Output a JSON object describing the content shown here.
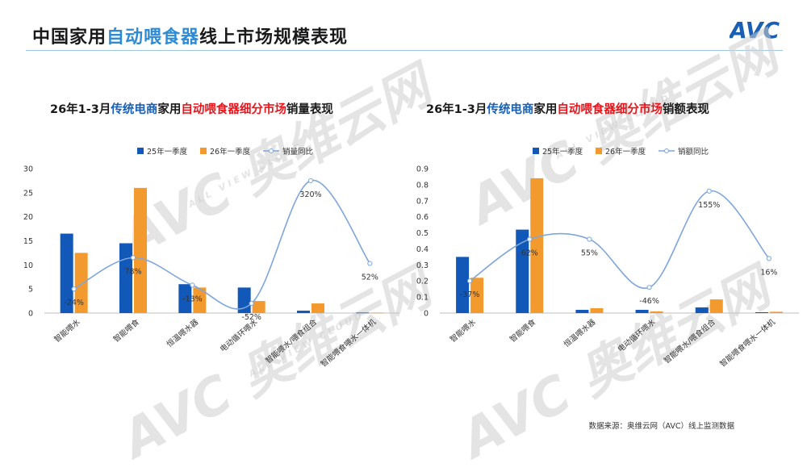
{
  "header": {
    "title_pre": "中国家用",
    "title_hl": "自动喂食器",
    "title_post": "线上市场规模表现"
  },
  "logo": {
    "text": "AVC"
  },
  "watermark": {
    "big": "AVC 奥维云网",
    "small": "ALL VIEW CLOUD"
  },
  "colors": {
    "q25": "#1158b8",
    "q26": "#f29a2e",
    "yoy": "#7ea6dc",
    "accent": "#2e8bd6"
  },
  "legend": {
    "q25": "25年一季度",
    "q26": "26年一季度",
    "yoy_volume": "销量同比",
    "yoy_value": "销额同比"
  },
  "charts": [
    {
      "title_parts": [
        "26年1-3月",
        "传统电商",
        "家用",
        "自动喂食器细分市场",
        "销量表现"
      ]
    },
    {
      "title_parts": [
        "26年1-3月",
        "传统电商",
        "家用",
        "自动喂食器细分市场",
        "销额表现"
      ]
    }
  ],
  "chart_data": [
    {
      "type": "bar",
      "title": "26年1-3月传统电商家用自动喂食器细分市场销量表现",
      "categories": [
        "智能喂水",
        "智能喂食",
        "恒温喂水器",
        "电动循环喂水",
        "智能喂水/喂食组合",
        "智能喂食喂水一体机"
      ],
      "series": [
        {
          "name": "25年一季度",
          "values": [
            16.5,
            14.5,
            6.0,
            5.3,
            0.5,
            0.1
          ]
        },
        {
          "name": "26年一季度",
          "values": [
            12.5,
            26.0,
            5.3,
            2.5,
            2.0,
            0.1
          ]
        }
      ],
      "yoy": {
        "name": "销量同比",
        "values": [
          5.0,
          11.5,
          5.8,
          2.0,
          27.5,
          10.3
        ],
        "labels": [
          "-24%",
          "78%",
          "-13%",
          "-52%",
          "320%",
          "52%"
        ]
      },
      "ylim": [
        0,
        30
      ],
      "yticks": [
        "0",
        "5",
        "10",
        "15",
        "20",
        "25",
        "30"
      ],
      "grid": false,
      "legend": "top"
    },
    {
      "type": "bar",
      "title": "26年1-3月传统电商家用自动喂食器细分市场销额表现",
      "categories": [
        "智能喂水",
        "智能喂食",
        "恒温喂水器",
        "电动循环喂水",
        "智能喂水/喂食组合",
        "智能喂食喂水一体机"
      ],
      "series": [
        {
          "name": "25年一季度",
          "values": [
            0.35,
            0.52,
            0.02,
            0.02,
            0.035,
            0.005
          ]
        },
        {
          "name": "26年一季度",
          "values": [
            0.22,
            0.84,
            0.03,
            0.01,
            0.085,
            0.008
          ]
        }
      ],
      "yoy": {
        "name": "销额同比",
        "values": [
          0.2,
          0.46,
          0.46,
          0.16,
          0.76,
          0.34
        ],
        "labels": [
          "-37%",
          "62%",
          "55%",
          "-46%",
          "155%",
          "16%"
        ]
      },
      "ylim": [
        0,
        0.9
      ],
      "yticks": [
        "0",
        "0.1",
        "0.2",
        "0.3",
        "0.4",
        "0.5",
        "0.6",
        "0.7",
        "0.8",
        "0.9"
      ],
      "grid": false,
      "legend": "top"
    }
  ],
  "source": "数据来源：奥维云网（AVC）线上监测数据"
}
